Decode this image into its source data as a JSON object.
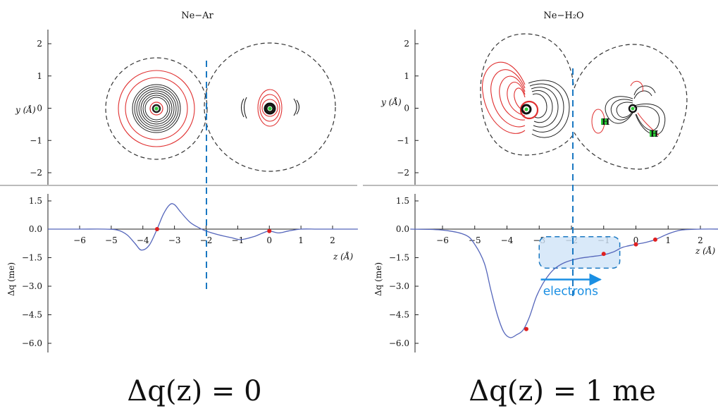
{
  "chart_data": [
    {
      "type": "line",
      "title": "Ne−Ar",
      "contour_panel": {
        "ylabel": "y (Å)",
        "yticks": [
          "2",
          "1",
          "0",
          "−1",
          "−2"
        ],
        "ylim": [
          -2.4,
          2.4
        ],
        "divider_z": -2.0,
        "atoms": [
          {
            "z": -3.55,
            "y": 0.0
          },
          {
            "z": 0.0,
            "y": 0.0
          }
        ]
      },
      "profile_panel": {
        "xlabel": "z (Å)",
        "ylabel": "Δq (me)",
        "xticks": [
          "−6",
          "−5",
          "−4",
          "−3",
          "−2",
          "−1",
          "0",
          "1",
          "2"
        ],
        "yticks": [
          "1.5",
          "0.0",
          "−1.5",
          "−3.0",
          "−4.5",
          "−6.0"
        ],
        "xlim": [
          -7.0,
          2.8
        ],
        "ylim": [
          -6.5,
          1.9
        ],
        "series": [
          {
            "x": [
              -7.0,
              -6.0,
              -5.2,
              -4.8,
              -4.5,
              -4.25,
              -4.05,
              -3.8,
              -3.55,
              -3.35,
              -3.15,
              -3.0,
              -2.8,
              -2.5,
              -2.2,
              -2.0,
              -1.6,
              -1.2,
              -0.9,
              -0.5,
              -0.2,
              0.0,
              0.3,
              0.6,
              1.0,
              1.5,
              2.0,
              2.8
            ],
            "y": [
              0.0,
              0.0,
              0.0,
              -0.05,
              -0.3,
              -0.75,
              -1.1,
              -0.85,
              0.0,
              0.8,
              1.3,
              1.3,
              0.9,
              0.35,
              0.05,
              -0.1,
              -0.3,
              -0.45,
              -0.55,
              -0.4,
              -0.2,
              -0.1,
              -0.2,
              -0.1,
              0.0,
              0.0,
              0.0,
              0.0
            ]
          }
        ],
        "markers": [
          {
            "x": -3.55,
            "y": 0.0
          },
          {
            "x": 0.0,
            "y": -0.1
          }
        ]
      },
      "caption": "Δq(z) = 0"
    },
    {
      "type": "line",
      "title": "Ne−H₂O",
      "contour_panel": {
        "ylabel": "y (Å)",
        "yticks": [
          "2",
          "1",
          "0",
          "−1",
          "−2"
        ],
        "ylim": [
          -2.4,
          2.4
        ],
        "divider_z": -2.0,
        "atoms": [
          {
            "z": -3.5,
            "y": 0.0
          },
          {
            "z": 0.0,
            "y": 0.0
          }
        ],
        "h_labels": [
          "H",
          "H"
        ]
      },
      "profile_panel": {
        "xlabel": "z (Å)",
        "ylabel": "Δq (me)",
        "xticks": [
          "−6",
          "−5",
          "−4",
          "−3",
          "−2",
          "−1",
          "0",
          "1",
          "2"
        ],
        "yticks": [
          "1.5",
          "0.0",
          "−1.5",
          "−3.0",
          "−4.5",
          "−6.0"
        ],
        "xlim": [
          -7.0,
          2.8
        ],
        "ylim": [
          -6.5,
          1.9
        ],
        "series": [
          {
            "x": [
              -7.0,
              -6.0,
              -5.3,
              -5.0,
              -4.7,
              -4.5,
              -4.3,
              -4.1,
              -3.9,
              -3.7,
              -3.5,
              -3.3,
              -3.1,
              -2.9,
              -2.7,
              -2.5,
              -2.2,
              -1.8,
              -1.4,
              -1.0,
              -0.7,
              -0.4,
              0.0,
              0.3,
              0.6,
              1.0,
              1.4,
              2.0,
              2.8
            ],
            "y": [
              0.0,
              -0.05,
              -0.3,
              -0.8,
              -1.8,
              -3.2,
              -4.5,
              -5.4,
              -5.7,
              -5.55,
              -5.3,
              -4.6,
              -3.6,
              -2.9,
              -2.4,
              -2.05,
              -1.75,
              -1.55,
              -1.45,
              -1.35,
              -1.2,
              -0.95,
              -0.8,
              -0.7,
              -0.55,
              -0.25,
              -0.05,
              0.0,
              0.0
            ]
          }
        ],
        "markers": [
          {
            "x": -3.4,
            "y": -5.25
          },
          {
            "x": -1.0,
            "y": -1.3
          },
          {
            "x": 0.0,
            "y": -0.8
          },
          {
            "x": 0.6,
            "y": -0.55
          }
        ],
        "highlight_box": {
          "x0": -3.0,
          "x1": -0.5,
          "y0": -2.05,
          "y1": -0.4
        },
        "arrow": {
          "x0": -2.95,
          "x1": -1.1,
          "y": -2.65,
          "label": "electrons"
        }
      },
      "caption": "Δq(z) = 1  me"
    }
  ]
}
